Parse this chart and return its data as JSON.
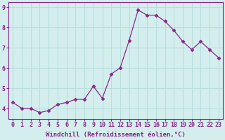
{
  "x": [
    0,
    1,
    2,
    3,
    4,
    5,
    6,
    7,
    8,
    9,
    10,
    11,
    12,
    13,
    14,
    15,
    16,
    17,
    18,
    19,
    20,
    21,
    22,
    23
  ],
  "y": [
    4.3,
    4.0,
    4.0,
    3.8,
    3.9,
    4.2,
    4.3,
    4.45,
    4.45,
    5.1,
    4.5,
    5.7,
    6.0,
    7.35,
    8.85,
    8.6,
    8.6,
    8.3,
    7.85,
    7.3,
    6.9,
    7.3,
    6.9,
    6.5
  ],
  "line_color": "#892888",
  "marker": "D",
  "marker_size": 2.5,
  "bg_color": "#d4eeee",
  "grid_color": "#b8dede",
  "xlabel": "Windchill (Refroidissement éolien,°C)",
  "ylabel": "",
  "xlim": [
    -0.5,
    23.5
  ],
  "ylim": [
    3.5,
    9.25
  ],
  "yticks": [
    4,
    5,
    6,
    7,
    8,
    9
  ],
  "xticks": [
    0,
    1,
    2,
    3,
    4,
    5,
    6,
    7,
    8,
    9,
    10,
    11,
    12,
    13,
    14,
    15,
    16,
    17,
    18,
    19,
    20,
    21,
    22,
    23
  ],
  "label_color": "#882288",
  "tick_color": "#882288",
  "spine_color": "#882288",
  "label_fontsize": 6.5,
  "tick_fontsize": 6.0
}
